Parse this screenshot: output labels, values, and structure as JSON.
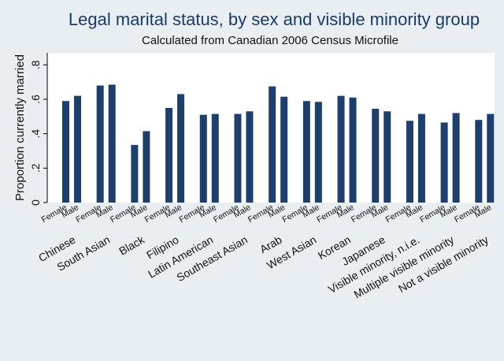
{
  "chart_data": {
    "type": "bar",
    "title": "Legal marital status, by sex and visible minority group",
    "subtitle": "Calculated from Canadian 2006 Census Microfile",
    "xlabel": "",
    "ylabel": "Proportion currently married",
    "ylim": [
      0,
      0.87
    ],
    "yticks": [
      0,
      0.2,
      0.4,
      0.6,
      0.8
    ],
    "ytick_labels": [
      "0",
      ".2",
      ".4",
      ".6",
      ".8"
    ],
    "grid": false,
    "bar_color": "#1d3f6e",
    "sub_categories": [
      "Female",
      "Male"
    ],
    "categories": [
      "Chinese",
      "South Asian",
      "Black",
      "Filipino",
      "Latin American",
      "Southeast Asian",
      "Arab",
      "West Asian",
      "Korean",
      "Japanese",
      "Visible minority, n.i.e.",
      "Multiple visible minority",
      "Not a visible minority"
    ],
    "series": [
      {
        "name": "Female",
        "values": [
          0.59,
          0.68,
          0.335,
          0.55,
          0.51,
          0.515,
          0.675,
          0.59,
          0.62,
          0.545,
          0.475,
          0.465,
          0.48
        ]
      },
      {
        "name": "Male",
        "values": [
          0.62,
          0.685,
          0.415,
          0.63,
          0.515,
          0.53,
          0.615,
          0.585,
          0.61,
          0.53,
          0.515,
          0.52,
          0.515
        ]
      }
    ]
  }
}
